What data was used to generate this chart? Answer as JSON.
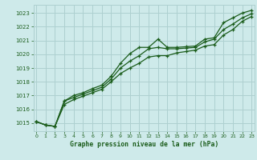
{
  "title": "Graphe pression niveau de la mer (hPa)",
  "bg_color": "#ceeaea",
  "grid_color": "#aed0d0",
  "line_color": "#1a5c1a",
  "ylim": [
    1014.4,
    1023.6
  ],
  "xlim": [
    -0.3,
    23.3
  ],
  "yticks": [
    1015,
    1016,
    1017,
    1018,
    1019,
    1020,
    1021,
    1022,
    1023
  ],
  "xticks": [
    0,
    1,
    2,
    3,
    4,
    5,
    6,
    7,
    8,
    9,
    10,
    11,
    12,
    13,
    14,
    15,
    16,
    17,
    18,
    19,
    20,
    21,
    22,
    23
  ],
  "series1": [
    1015.1,
    1014.85,
    1014.75,
    1016.6,
    1017.0,
    1017.2,
    1017.5,
    1017.75,
    1018.4,
    1019.35,
    1020.05,
    1020.5,
    1020.5,
    1021.1,
    1020.5,
    1020.5,
    1020.55,
    1020.6,
    1021.1,
    1021.2,
    1022.3,
    1022.65,
    1023.0,
    1023.2
  ],
  "series2": [
    1015.1,
    1014.85,
    1014.75,
    1016.6,
    1016.85,
    1017.1,
    1017.35,
    1017.6,
    1018.2,
    1019.0,
    1019.5,
    1019.9,
    1020.4,
    1020.5,
    1020.4,
    1020.4,
    1020.45,
    1020.5,
    1020.9,
    1021.1,
    1021.8,
    1022.2,
    1022.65,
    1022.95
  ],
  "series3": [
    1015.1,
    1014.85,
    1014.75,
    1016.35,
    1016.7,
    1016.95,
    1017.2,
    1017.45,
    1018.0,
    1018.6,
    1019.0,
    1019.35,
    1019.8,
    1019.9,
    1019.9,
    1020.1,
    1020.2,
    1020.3,
    1020.6,
    1020.7,
    1021.4,
    1021.8,
    1022.4,
    1022.75
  ]
}
